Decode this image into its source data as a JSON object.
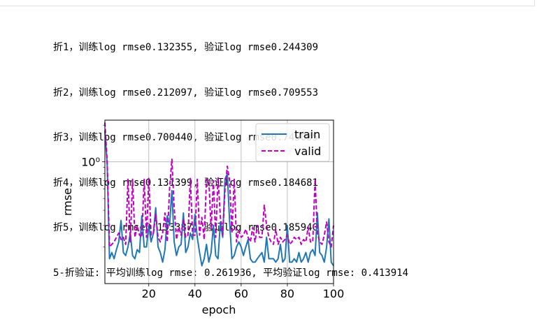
{
  "output_lines": [
    "折1，训练log rmse0.132355, 验证log rmse0.244309",
    "折2，训练log rmse0.212097, 验证log rmse0.709553",
    "折3，训练log rmse0.700440, 验证log rmse0.745085",
    "折4，训练log rmse0.131399, 验证log rmse0.184681",
    "折5，训练log rmse0.133387, 验证log rmse0.185940",
    "5-折验证: 平均训练log rmse: 0.261936, 平均验证log rmse: 0.413914"
  ],
  "chart_data": {
    "type": "line",
    "xlabel": "epoch",
    "ylabel": "rmse",
    "yscale": "log",
    "xlim": [
      1,
      100
    ],
    "ylim": [
      0.1,
      2.2
    ],
    "xticks": [
      20,
      40,
      60,
      80,
      100
    ],
    "yticks": [
      {
        "value": 1,
        "label": "10⁰"
      }
    ],
    "grid": true,
    "legend_position": "top-right",
    "series": [
      {
        "name": "train",
        "color": "#1f77b4",
        "style": "solid",
        "x": [
          1,
          2,
          3,
          4,
          5,
          6,
          7,
          8,
          9,
          10,
          11,
          12,
          13,
          14,
          15,
          16,
          17,
          18,
          19,
          20,
          21,
          22,
          23,
          24,
          25,
          26,
          27,
          28,
          29,
          30,
          31,
          32,
          33,
          34,
          35,
          36,
          37,
          38,
          39,
          40,
          41,
          42,
          43,
          44,
          45,
          46,
          47,
          48,
          49,
          50,
          51,
          52,
          53,
          54,
          55,
          56,
          57,
          58,
          59,
          60,
          61,
          62,
          63,
          64,
          65,
          66,
          67,
          68,
          69,
          70,
          71,
          72,
          73,
          74,
          75,
          76,
          77,
          78,
          79,
          80,
          81,
          82,
          83,
          84,
          85,
          86,
          87,
          88,
          89,
          90,
          91,
          92,
          93,
          94,
          95,
          96,
          97,
          98,
          99,
          100
        ],
        "values": [
          1.8,
          0.95,
          0.16,
          0.18,
          0.16,
          0.19,
          0.22,
          0.33,
          0.18,
          0.17,
          0.2,
          0.26,
          0.17,
          0.16,
          0.19,
          0.18,
          0.36,
          0.2,
          0.2,
          0.3,
          0.22,
          0.26,
          0.42,
          0.2,
          0.18,
          0.15,
          0.19,
          0.36,
          0.3,
          0.58,
          0.22,
          0.17,
          0.2,
          0.21,
          0.38,
          0.18,
          0.2,
          0.26,
          0.23,
          0.37,
          0.24,
          0.18,
          0.14,
          0.16,
          0.21,
          0.15,
          0.18,
          0.3,
          0.17,
          0.16,
          0.32,
          0.24,
          0.72,
          0.8,
          0.32,
          0.16,
          0.17,
          0.2,
          0.22,
          0.2,
          0.17,
          0.2,
          0.23,
          0.16,
          0.15,
          0.15,
          0.16,
          0.17,
          0.18,
          0.15,
          0.24,
          0.16,
          0.16,
          0.16,
          0.15,
          0.16,
          0.21,
          0.15,
          0.16,
          0.3,
          0.15,
          0.15,
          0.16,
          0.15,
          0.18,
          0.15,
          0.16,
          0.18,
          0.15,
          0.18,
          0.19,
          0.17,
          0.38,
          0.18,
          0.17,
          0.15,
          0.2,
          0.34,
          0.15,
          0.14
        ]
      },
      {
        "name": "valid",
        "color": "#bf00bf",
        "style": "dashed",
        "x": [
          1,
          2,
          3,
          4,
          5,
          6,
          7,
          8,
          9,
          10,
          11,
          12,
          13,
          14,
          15,
          16,
          17,
          18,
          19,
          20,
          21,
          22,
          23,
          24,
          25,
          26,
          27,
          28,
          29,
          30,
          31,
          32,
          33,
          34,
          35,
          36,
          37,
          38,
          39,
          40,
          41,
          42,
          43,
          44,
          45,
          46,
          47,
          48,
          49,
          50,
          51,
          52,
          53,
          54,
          55,
          56,
          57,
          58,
          59,
          60,
          61,
          62,
          63,
          64,
          65,
          66,
          67,
          68,
          69,
          70,
          71,
          72,
          73,
          74,
          75,
          76,
          77,
          78,
          79,
          80,
          81,
          82,
          83,
          84,
          85,
          86,
          87,
          88,
          89,
          90,
          91,
          92,
          93,
          94,
          95,
          96,
          97,
          98,
          99,
          100
        ],
        "values": [
          2.1,
          1.0,
          0.2,
          0.21,
          0.22,
          0.24,
          0.26,
          0.23,
          0.24,
          0.21,
          0.72,
          0.22,
          0.72,
          0.24,
          0.3,
          0.25,
          0.24,
          0.72,
          0.24,
          0.73,
          0.25,
          0.26,
          0.37,
          0.24,
          0.22,
          0.26,
          0.38,
          0.22,
          0.6,
          1.05,
          0.42,
          0.23,
          0.29,
          0.25,
          0.34,
          0.24,
          0.25,
          0.73,
          0.25,
          0.25,
          0.72,
          0.25,
          0.35,
          0.23,
          0.72,
          0.72,
          0.28,
          0.7,
          0.24,
          0.75,
          0.35,
          0.25,
          0.6,
          0.92,
          0.7,
          0.26,
          0.72,
          0.22,
          0.27,
          0.24,
          0.25,
          0.28,
          0.24,
          0.22,
          0.29,
          0.22,
          0.3,
          0.24,
          0.24,
          0.44,
          0.3,
          0.24,
          0.22,
          0.21,
          0.28,
          0.21,
          0.24,
          0.22,
          0.23,
          0.25,
          0.21,
          0.22,
          0.24,
          0.23,
          0.24,
          0.21,
          0.23,
          0.22,
          0.29,
          0.22,
          0.22,
          0.72,
          0.26,
          0.22,
          0.21,
          0.25,
          0.32,
          0.22,
          0.2,
          0.3
        ]
      }
    ]
  }
}
